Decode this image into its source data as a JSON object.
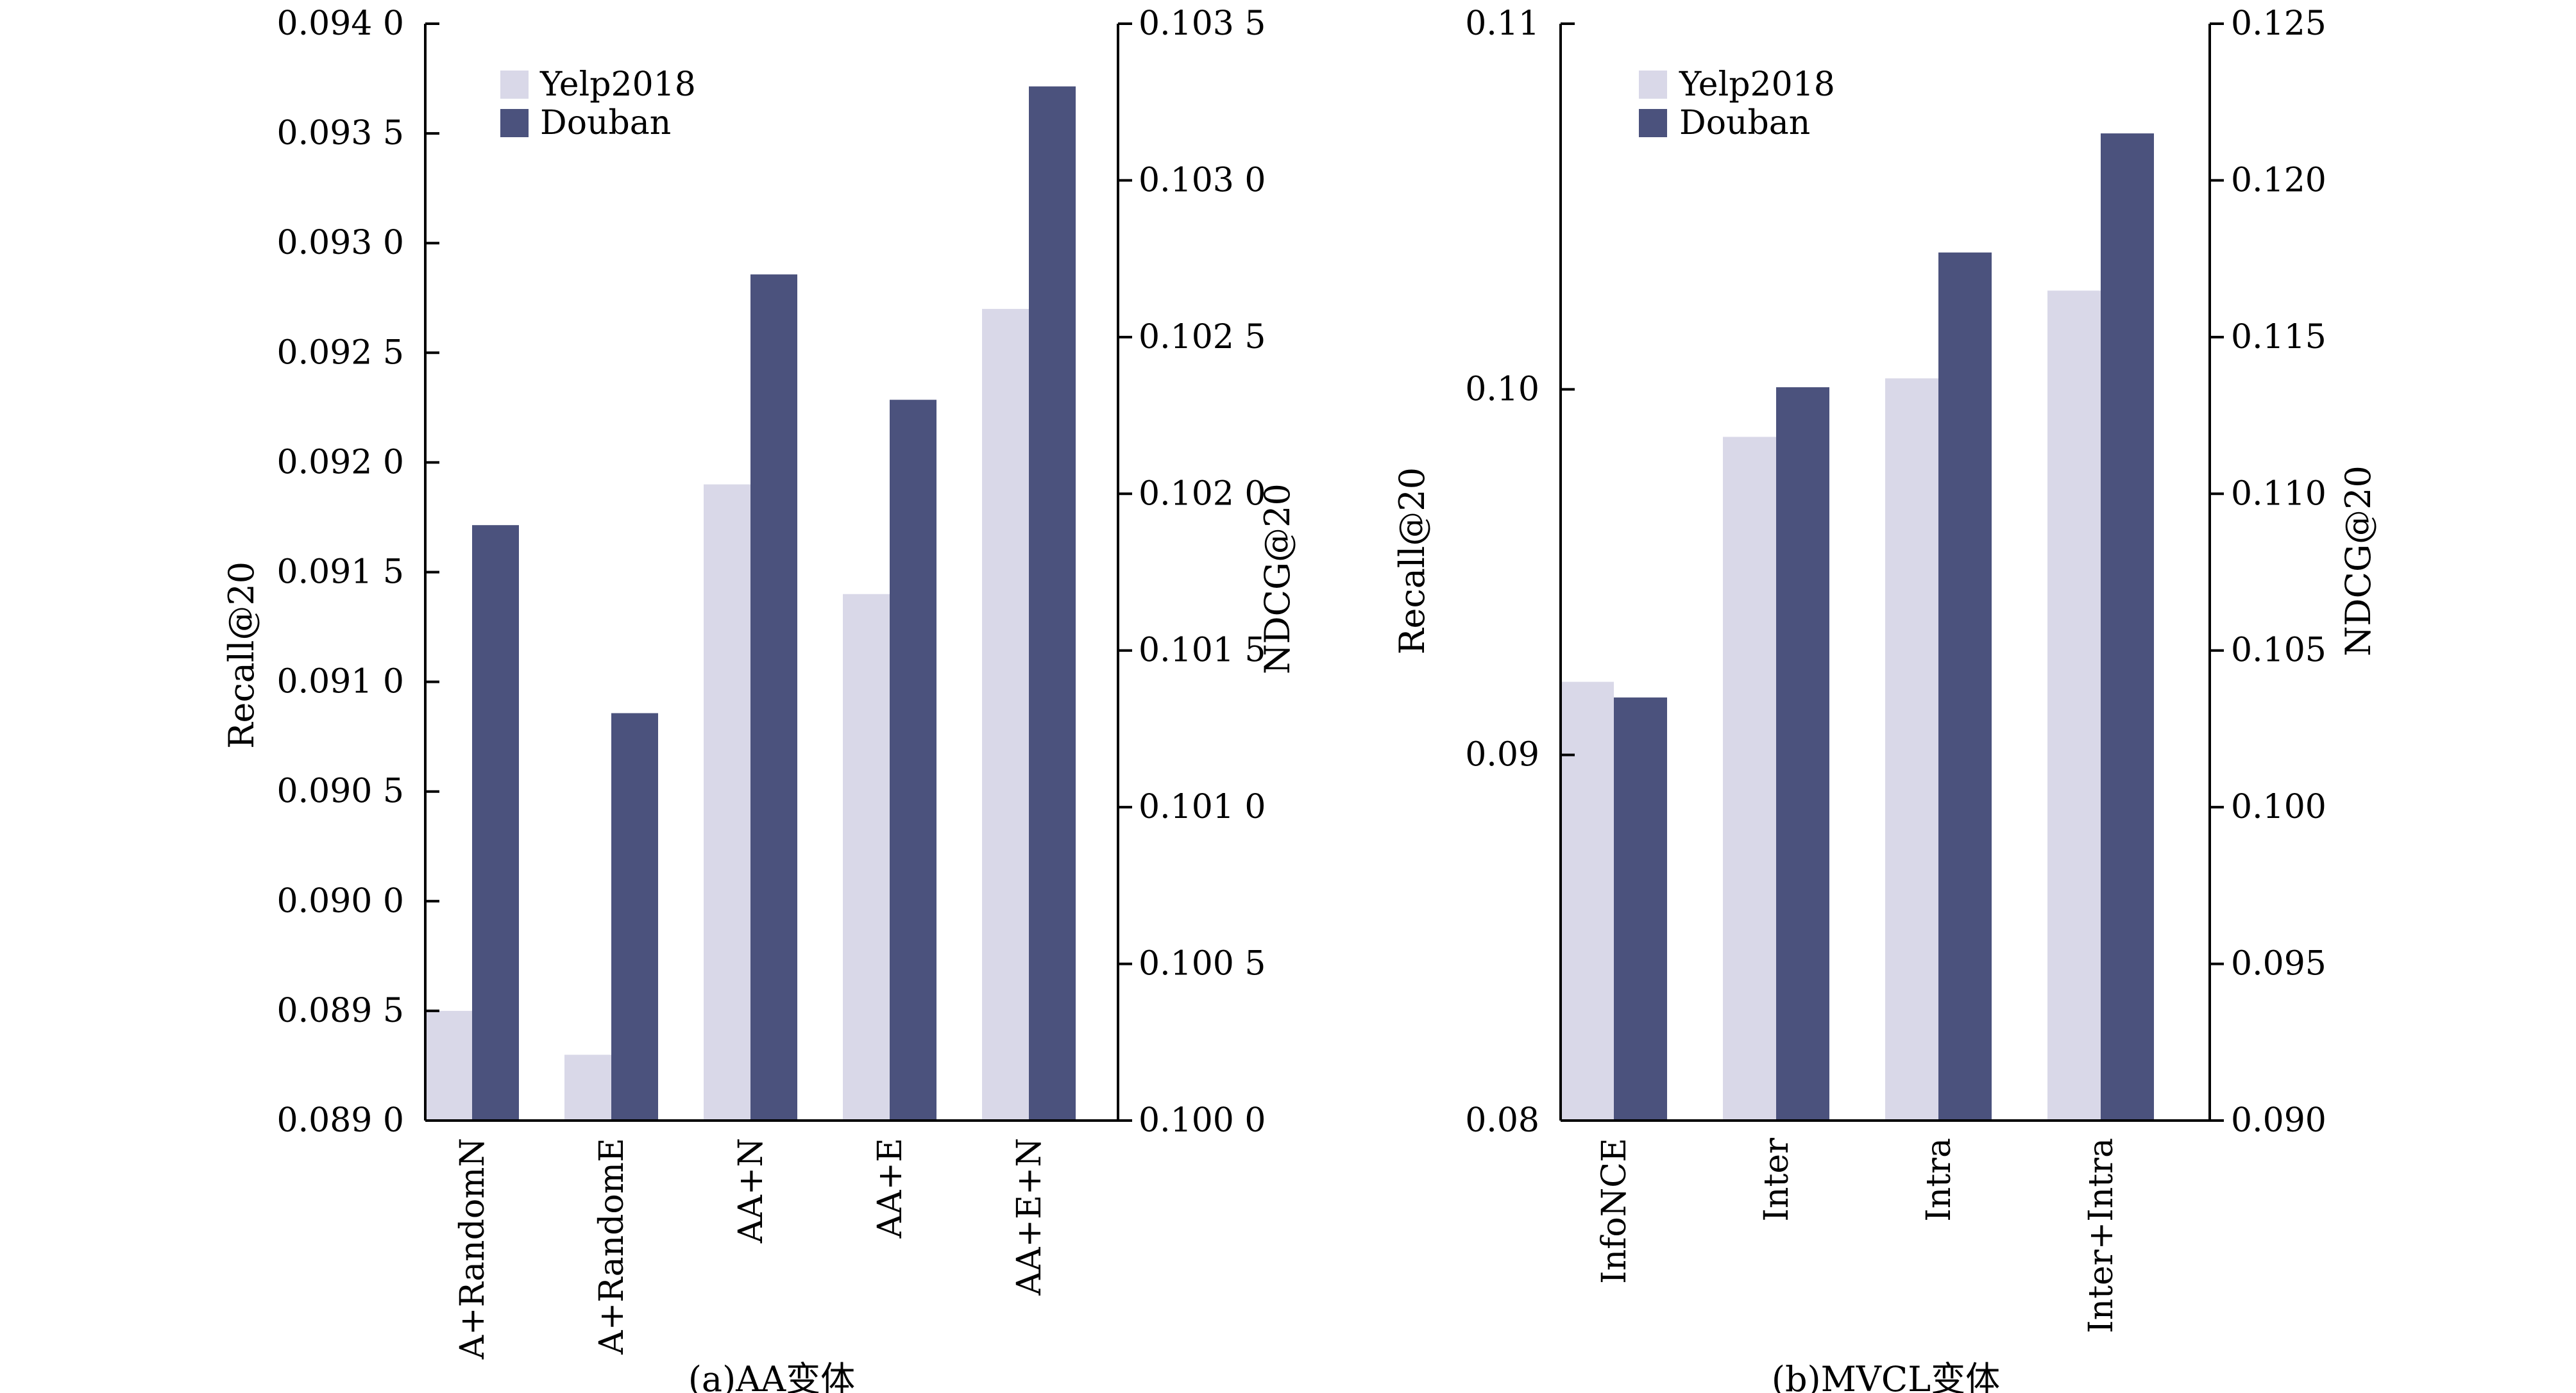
{
  "colors": {
    "yelp": "#d9d8e8",
    "douban": "#4b527d"
  },
  "chart_data": [
    {
      "type": "bar",
      "caption": "(a)AA变体",
      "categories": [
        "A+RandomN",
        "A+RandomE",
        "AA+N",
        "AA+E",
        "AA+E+N"
      ],
      "legend": [
        "Yelp2018",
        "Douban"
      ],
      "ylabel_left": "Recall@20",
      "ylabel_right": "NDCG@20",
      "ylim_left": [
        0.089,
        0.094
      ],
      "ylim_right": [
        0.1,
        0.1035
      ],
      "yticks_left": [
        "0.089 0",
        "0.089 5",
        "0.090 0",
        "0.090 5",
        "0.091 0",
        "0.091 5",
        "0.092 0",
        "0.092 5",
        "0.093 0",
        "0.093 5",
        "0.094 0"
      ],
      "yticks_right": [
        "0.100 0",
        "0.100 5",
        "0.101 0",
        "0.101 5",
        "0.102 0",
        "0.102 5",
        "0.103 0",
        "0.103 5"
      ],
      "series": [
        {
          "name": "Yelp2018",
          "axis": "left",
          "values": [
            0.0895,
            0.0893,
            0.0919,
            0.0914,
            0.0927
          ]
        },
        {
          "name": "Douban",
          "axis": "right",
          "values": [
            0.1019,
            0.1013,
            0.1027,
            0.1023,
            0.1033
          ]
        }
      ]
    },
    {
      "type": "bar",
      "caption": "(b)MVCL变体",
      "categories": [
        "InfoNCE",
        "Inter",
        "Intra",
        "Inter+Intra"
      ],
      "legend": [
        "Yelp2018",
        "Douban"
      ],
      "ylabel_left": "Recall@20",
      "ylabel_right": "NDCG@20",
      "ylim_left": [
        0.08,
        0.11
      ],
      "ylim_right": [
        0.09,
        0.125
      ],
      "yticks_left": [
        "0.08",
        "0.09",
        "0.10",
        "0.11"
      ],
      "yticks_right": [
        "0.090",
        "0.095",
        "0.100",
        "0.105",
        "0.110",
        "0.115",
        "0.120",
        "0.125"
      ],
      "series": [
        {
          "name": "Yelp2018",
          "axis": "left",
          "values": [
            0.092,
            0.0987,
            0.1003,
            0.1027
          ]
        },
        {
          "name": "Douban",
          "axis": "right",
          "values": [
            0.1035,
            0.1134,
            0.1177,
            0.1215
          ]
        }
      ]
    }
  ]
}
